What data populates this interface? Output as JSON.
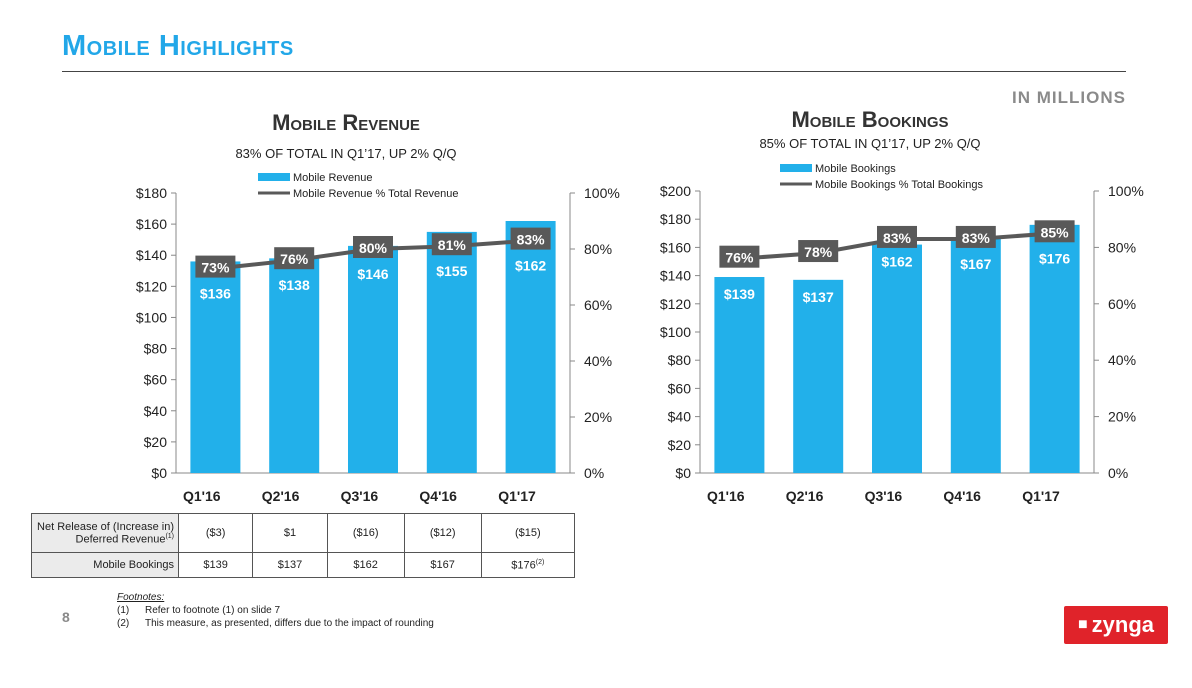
{
  "page": {
    "title": "Mobile Highlights",
    "units": "IN MILLIONS",
    "page_number": "8"
  },
  "charts": {
    "revenue": {
      "title": "Mobile Revenue",
      "subtitle": "83% OF TOTAL IN Q1’17, UP 2% Q/Q"
    },
    "bookings": {
      "title": "Mobile Bookings",
      "subtitle": "85% OF TOTAL IN Q1’17, UP 2% Q/Q"
    }
  },
  "chart_data": [
    {
      "type": "bar",
      "title": "Mobile Revenue",
      "subtitle": "83% OF TOTAL IN Q1’17, UP 2% Q/Q",
      "categories": [
        "Q1'16",
        "Q2'16",
        "Q3'16",
        "Q4'16",
        "Q1'17"
      ],
      "series": [
        {
          "name": "Mobile Revenue",
          "axis": "left",
          "values": [
            136,
            138,
            146,
            155,
            162
          ],
          "labels": [
            "$136",
            "$138",
            "$146",
            "$155",
            "$162"
          ],
          "color": "#22b0ea"
        },
        {
          "name": "Mobile Revenue % Total Revenue",
          "axis": "right",
          "kind": "line",
          "values": [
            73,
            76,
            80,
            81,
            83
          ],
          "labels": [
            "73%",
            "76%",
            "80%",
            "81%",
            "83%"
          ],
          "color": "#595959"
        }
      ],
      "ylim_left": [
        0,
        180
      ],
      "yticks_left": [
        "$0",
        "$20",
        "$40",
        "$60",
        "$80",
        "$100",
        "$120",
        "$140",
        "$160",
        "$180"
      ],
      "ylim_right": [
        0,
        100
      ],
      "yticks_right": [
        "0%",
        "20%",
        "40%",
        "60%",
        "80%",
        "100%"
      ],
      "legend": [
        "Mobile Revenue",
        "Mobile Revenue % Total Revenue"
      ],
      "grid": false
    },
    {
      "type": "bar",
      "title": "Mobile Bookings",
      "subtitle": "85% OF TOTAL IN Q1’17, UP 2% Q/Q",
      "categories": [
        "Q1'16",
        "Q2'16",
        "Q3'16",
        "Q4'16",
        "Q1'17"
      ],
      "series": [
        {
          "name": "Mobile Bookings",
          "axis": "left",
          "values": [
            139,
            137,
            162,
            167,
            176
          ],
          "labels": [
            "$139",
            "$137",
            "$162",
            "$167",
            "$176"
          ],
          "color": "#22b0ea"
        },
        {
          "name": "Mobile Bookings % Total Bookings",
          "axis": "right",
          "kind": "line",
          "values": [
            76,
            78,
            83,
            83,
            85
          ],
          "labels": [
            "76%",
            "78%",
            "83%",
            "83%",
            "85%"
          ],
          "color": "#595959"
        }
      ],
      "ylim_left": [
        0,
        200
      ],
      "yticks_left": [
        "$0",
        "$20",
        "$40",
        "$60",
        "$80",
        "$100",
        "$120",
        "$140",
        "$160",
        "$180",
        "$200"
      ],
      "ylim_right": [
        0,
        100
      ],
      "yticks_right": [
        "0%",
        "20%",
        "40%",
        "60%",
        "80%",
        "100%"
      ],
      "legend": [
        "Mobile Bookings",
        "Mobile Bookings % Total Bookings"
      ],
      "grid": false
    }
  ],
  "table": {
    "row1_label_line1": "Net Release of (Increase in)",
    "row1_label_line2": "Deferred Revenue",
    "row1_label_sup": "(1)",
    "row1_values": [
      "($3)",
      "$1",
      "($16)",
      "($12)",
      "($15)"
    ],
    "row2_label": "Mobile Bookings",
    "row2_values": [
      "$139",
      "$137",
      "$162",
      "$167",
      "$176"
    ],
    "row2_last_sup": "(2)"
  },
  "footnotes": {
    "title": "Footnotes:",
    "items": [
      {
        "num": "(1)",
        "text": "Refer to footnote (1) on slide 7"
      },
      {
        "num": "(2)",
        "text": "This measure, as presented, differs due to the impact of rounding"
      }
    ]
  },
  "logo": {
    "text": "zynga"
  },
  "colors": {
    "accent": "#22a7e8",
    "bar": "#22b0ea",
    "line": "#595959",
    "logo": "#e0232a"
  }
}
